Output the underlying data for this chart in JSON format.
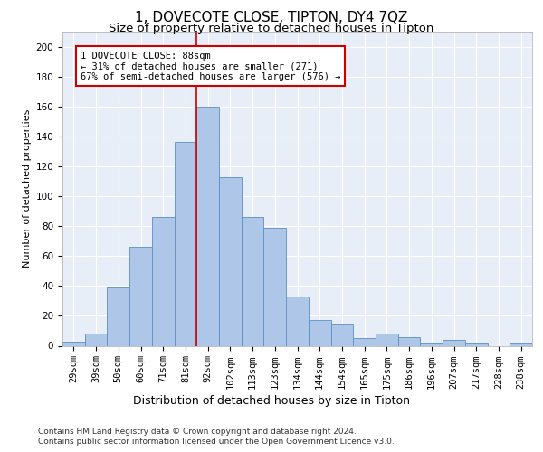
{
  "title": "1, DOVECOTE CLOSE, TIPTON, DY4 7QZ",
  "subtitle": "Size of property relative to detached houses in Tipton",
  "xlabel": "Distribution of detached houses by size in Tipton",
  "ylabel": "Number of detached properties",
  "categories": [
    "29sqm",
    "39sqm",
    "50sqm",
    "60sqm",
    "71sqm",
    "81sqm",
    "92sqm",
    "102sqm",
    "113sqm",
    "123sqm",
    "134sqm",
    "144sqm",
    "154sqm",
    "165sqm",
    "175sqm",
    "186sqm",
    "196sqm",
    "207sqm",
    "217sqm",
    "228sqm",
    "238sqm"
  ],
  "bar_heights": [
    3,
    8,
    39,
    66,
    86,
    136,
    160,
    113,
    86,
    79,
    33,
    17,
    15,
    5,
    8,
    6,
    2,
    4,
    2,
    0,
    2
  ],
  "bar_color": "#aec6e8",
  "bar_edge_color": "#5a8fc2",
  "background_color": "#e8eef7",
  "grid_color": "#ffffff",
  "vline_bin": 6,
  "vline_color": "#cc0000",
  "annotation_text": "1 DOVECOTE CLOSE: 88sqm\n← 31% of detached houses are smaller (271)\n67% of semi-detached houses are larger (576) →",
  "annotation_box_color": "#cc0000",
  "ylim": [
    0,
    210
  ],
  "yticks": [
    0,
    20,
    40,
    60,
    80,
    100,
    120,
    140,
    160,
    180,
    200
  ],
  "footer1": "Contains HM Land Registry data © Crown copyright and database right 2024.",
  "footer2": "Contains public sector information licensed under the Open Government Licence v3.0.",
  "title_fontsize": 11,
  "subtitle_fontsize": 9.5,
  "xlabel_fontsize": 9,
  "ylabel_fontsize": 8,
  "tick_fontsize": 7.5,
  "annotation_fontsize": 7.5,
  "footer_fontsize": 6.5
}
